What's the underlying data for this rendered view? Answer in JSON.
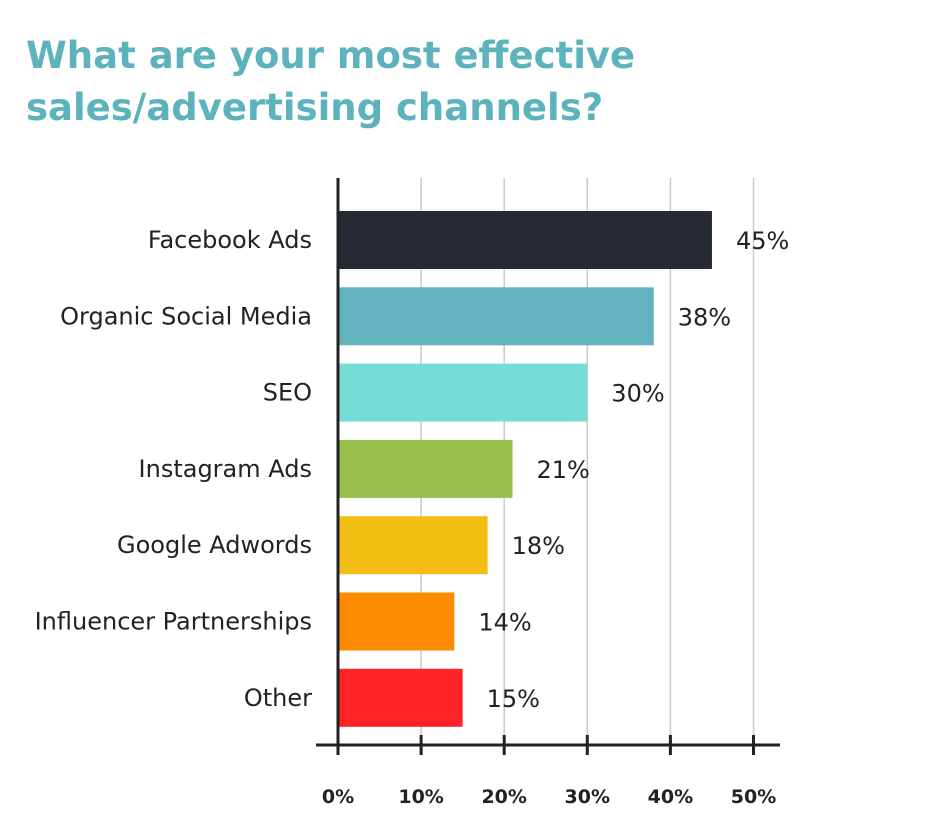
{
  "title": "What are your most effective sales/advertising channels?",
  "chart_data": {
    "type": "bar",
    "orientation": "horizontal",
    "categories": [
      "Facebook Ads",
      "Organic Social Media",
      "SEO",
      "Instagram Ads",
      "Google Adwords",
      "Influencer Partnerships",
      "Other"
    ],
    "values": [
      45,
      38,
      30,
      21,
      18,
      14,
      15
    ],
    "value_labels": [
      "45%",
      "38%",
      "30%",
      "21%",
      "18%",
      "14%",
      "15%"
    ],
    "colors": [
      "#262a33",
      "#62b3bd",
      "#75ddd5",
      "#97bf4b",
      "#f3bd13",
      "#fd8b00",
      "#fd2327"
    ],
    "xlim": [
      0,
      50
    ],
    "x_ticks": [
      "0%",
      "10%",
      "20%",
      "30%",
      "40%",
      "50%"
    ],
    "grid": true
  }
}
